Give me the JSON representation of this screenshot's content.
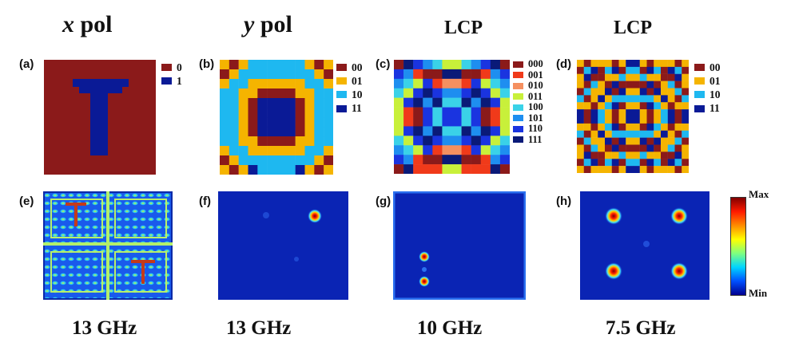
{
  "columns": [
    {
      "title_var": "x",
      "title_rest": " pol",
      "freq": "13 GHz"
    },
    {
      "title_var": "y",
      "title_rest": " pol",
      "freq": "13 GHz"
    },
    {
      "title_var": "",
      "title_rest": "LCP",
      "freq": "10 GHz"
    },
    {
      "title_var": "",
      "title_rest": "LCP",
      "freq": "7.5 GHz"
    }
  ],
  "panel_labels": [
    "(a)",
    "(b)",
    "(c)",
    "(d)",
    "(e)",
    "(f)",
    "(g)",
    "(h)"
  ],
  "legends": {
    "a": [
      {
        "code": "0",
        "color": "#8b1a1a"
      },
      {
        "code": "1",
        "color": "#0a1a96"
      }
    ],
    "b": [
      {
        "code": "00",
        "color": "#8b1a1a"
      },
      {
        "code": "01",
        "color": "#f5b400"
      },
      {
        "code": "10",
        "color": "#1eb8f0"
      },
      {
        "code": "11",
        "color": "#0a1a96"
      }
    ],
    "c": [
      {
        "code": "000",
        "color": "#8b1a1a"
      },
      {
        "code": "001",
        "color": "#f03a1a"
      },
      {
        "code": "010",
        "color": "#f59060"
      },
      {
        "code": "011",
        "color": "#c8f03a"
      },
      {
        "code": "100",
        "color": "#3ad2e8"
      },
      {
        "code": "101",
        "color": "#1e8ef0"
      },
      {
        "code": "110",
        "color": "#1a34e0"
      },
      {
        "code": "111",
        "color": "#0a1a78"
      }
    ],
    "d": [
      {
        "code": "00",
        "color": "#8b1a1a"
      },
      {
        "code": "01",
        "color": "#f5b400"
      },
      {
        "code": "10",
        "color": "#1eb8f0"
      },
      {
        "code": "11",
        "color": "#0a1a96"
      }
    ]
  },
  "colorbar": {
    "max_label": "Max",
    "min_label": "Min"
  }
}
